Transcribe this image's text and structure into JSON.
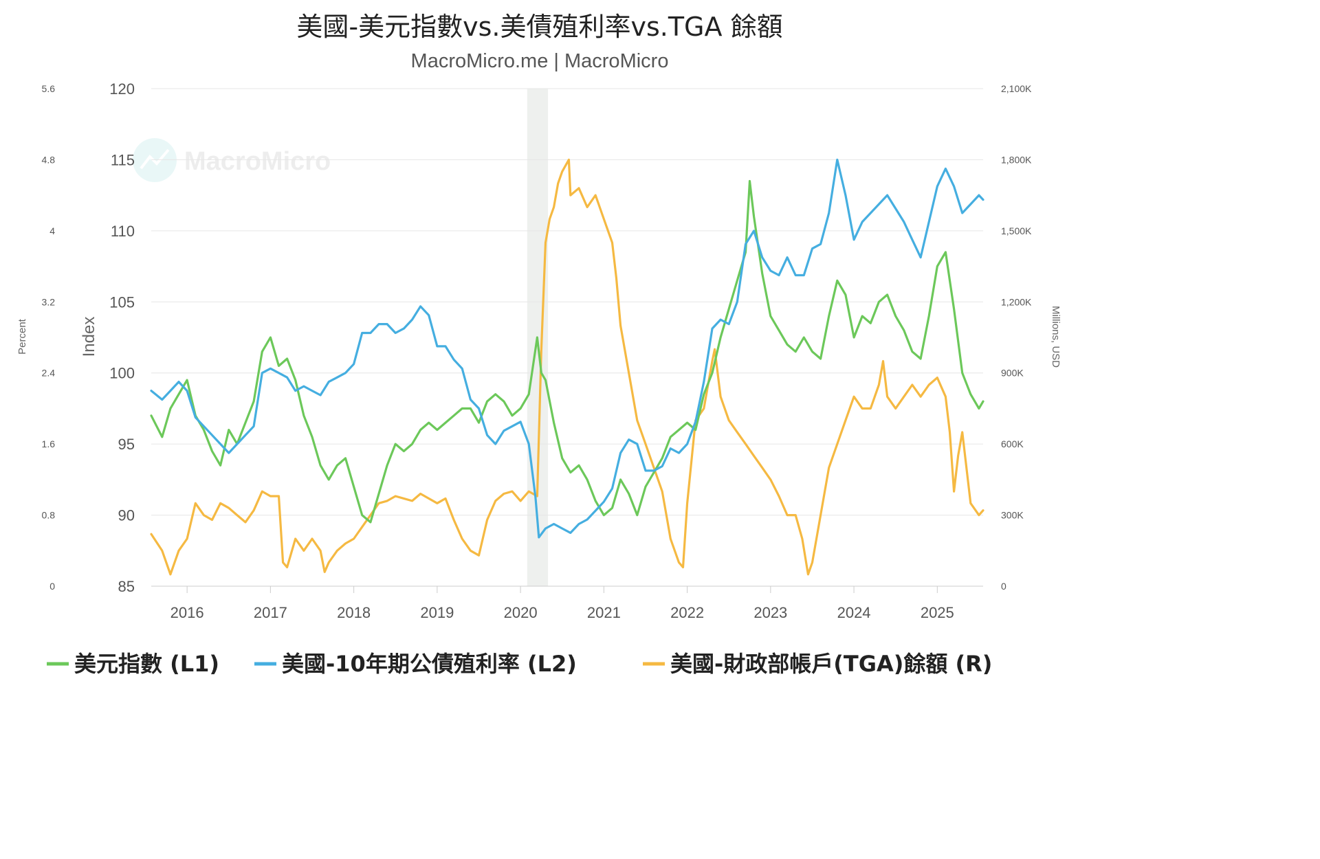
{
  "chart_data": {
    "type": "line",
    "title": "美國-美元指數vs.美債殖利率vs.TGA 餘額",
    "subtitle": "MacroMicro.me | MacroMicro",
    "watermark": "MacroMicro",
    "x_ticks": [
      "2016",
      "2017",
      "2018",
      "2019",
      "2020",
      "2021",
      "2022",
      "2023",
      "2024",
      "2025"
    ],
    "xlim": [
      2015.57,
      2025.55
    ],
    "recession_band": [
      2020.08,
      2020.33
    ],
    "axes": {
      "left1": {
        "label": "Index",
        "ylim": [
          85,
          120
        ],
        "ticks": [
          "85",
          "90",
          "95",
          "100",
          "105",
          "110",
          "115",
          "120"
        ]
      },
      "left2": {
        "label": "Percent",
        "ylim": [
          0,
          5.6
        ],
        "ticks": [
          "0",
          "0.8",
          "1.6",
          "2.4",
          "3.2",
          "4",
          "4.8",
          "5.6"
        ]
      },
      "right": {
        "label": "Millions, USD",
        "ylim": [
          0,
          2100000
        ],
        "ticks": [
          "0",
          "300K",
          "600K",
          "900K",
          "1,200K",
          "1,500K",
          "1,800K",
          "2,100K"
        ]
      }
    },
    "grid": true,
    "series": [
      {
        "name": "美元指數 (L1)",
        "axis": "left1",
        "color": "#6cc85a",
        "x": [
          2015.57,
          2015.7,
          2015.8,
          2015.9,
          2016.0,
          2016.1,
          2016.2,
          2016.3,
          2016.4,
          2016.5,
          2016.6,
          2016.7,
          2016.8,
          2016.9,
          2017.0,
          2017.1,
          2017.2,
          2017.3,
          2017.4,
          2017.5,
          2017.6,
          2017.7,
          2017.8,
          2017.9,
          2018.0,
          2018.1,
          2018.2,
          2018.3,
          2018.4,
          2018.5,
          2018.6,
          2018.7,
          2018.8,
          2018.9,
          2019.0,
          2019.1,
          2019.2,
          2019.3,
          2019.4,
          2019.5,
          2019.6,
          2019.7,
          2019.8,
          2019.9,
          2020.0,
          2020.1,
          2020.2,
          2020.25,
          2020.3,
          2020.4,
          2020.5,
          2020.6,
          2020.7,
          2020.8,
          2020.9,
          2021.0,
          2021.1,
          2021.2,
          2021.3,
          2021.4,
          2021.5,
          2021.6,
          2021.7,
          2021.8,
          2021.9,
          2022.0,
          2022.1,
          2022.2,
          2022.3,
          2022.4,
          2022.5,
          2022.6,
          2022.7,
          2022.75,
          2022.8,
          2022.9,
          2023.0,
          2023.1,
          2023.2,
          2023.3,
          2023.4,
          2023.5,
          2023.6,
          2023.7,
          2023.8,
          2023.9,
          2024.0,
          2024.1,
          2024.2,
          2024.3,
          2024.4,
          2024.5,
          2024.6,
          2024.7,
          2024.8,
          2024.9,
          2025.0,
          2025.1,
          2025.2,
          2025.3,
          2025.4,
          2025.5,
          2025.55
        ],
        "values": [
          97.0,
          95.5,
          97.5,
          98.5,
          99.5,
          97.0,
          96.0,
          94.5,
          93.5,
          96.0,
          95.0,
          96.5,
          98.0,
          101.5,
          102.5,
          100.5,
          101.0,
          99.5,
          97.0,
          95.5,
          93.5,
          92.5,
          93.5,
          94.0,
          92.0,
          90.0,
          89.5,
          91.5,
          93.5,
          95.0,
          94.5,
          95.0,
          96.0,
          96.5,
          96.0,
          96.5,
          97.0,
          97.5,
          97.5,
          96.5,
          98.0,
          98.5,
          98.0,
          97.0,
          97.5,
          98.5,
          102.5,
          100.0,
          99.5,
          96.5,
          94.0,
          93.0,
          93.5,
          92.5,
          91.0,
          90.0,
          90.5,
          92.5,
          91.5,
          90.0,
          92.0,
          93.0,
          94.0,
          95.5,
          96.0,
          96.5,
          96.0,
          98.5,
          100.0,
          102.5,
          104.5,
          106.5,
          108.5,
          113.5,
          111.0,
          107.0,
          104.0,
          103.0,
          102.0,
          101.5,
          102.5,
          101.5,
          101.0,
          104.0,
          106.5,
          105.5,
          102.5,
          104.0,
          103.5,
          105.0,
          105.5,
          104.0,
          103.0,
          101.5,
          101.0,
          104.0,
          107.5,
          108.5,
          104.5,
          100.0,
          98.5,
          97.5,
          98.0
        ]
      },
      {
        "name": "美國-10年期公債殖利率 (L2)",
        "axis": "left2",
        "color": "#45aee0",
        "x": [
          2015.57,
          2015.7,
          2015.8,
          2015.9,
          2016.0,
          2016.1,
          2016.2,
          2016.3,
          2016.4,
          2016.5,
          2016.6,
          2016.7,
          2016.8,
          2016.9,
          2017.0,
          2017.1,
          2017.2,
          2017.3,
          2017.4,
          2017.5,
          2017.6,
          2017.7,
          2017.8,
          2017.9,
          2018.0,
          2018.1,
          2018.2,
          2018.3,
          2018.4,
          2018.5,
          2018.6,
          2018.7,
          2018.8,
          2018.9,
          2019.0,
          2019.1,
          2019.2,
          2019.3,
          2019.4,
          2019.5,
          2019.6,
          2019.7,
          2019.8,
          2019.9,
          2020.0,
          2020.1,
          2020.18,
          2020.22,
          2020.3,
          2020.4,
          2020.5,
          2020.6,
          2020.7,
          2020.8,
          2020.9,
          2021.0,
          2021.1,
          2021.2,
          2021.3,
          2021.4,
          2021.5,
          2021.6,
          2021.7,
          2021.8,
          2021.9,
          2022.0,
          2022.1,
          2022.2,
          2022.3,
          2022.4,
          2022.5,
          2022.6,
          2022.7,
          2022.8,
          2022.9,
          2023.0,
          2023.1,
          2023.2,
          2023.3,
          2023.4,
          2023.5,
          2023.6,
          2023.7,
          2023.8,
          2023.9,
          2024.0,
          2024.1,
          2024.2,
          2024.3,
          2024.4,
          2024.5,
          2024.6,
          2024.7,
          2024.8,
          2024.9,
          2025.0,
          2025.1,
          2025.2,
          2025.3,
          2025.4,
          2025.5,
          2025.55
        ],
        "values": [
          2.2,
          2.1,
          2.2,
          2.3,
          2.2,
          1.9,
          1.8,
          1.7,
          1.6,
          1.5,
          1.6,
          1.7,
          1.8,
          2.4,
          2.45,
          2.4,
          2.35,
          2.2,
          2.25,
          2.2,
          2.15,
          2.3,
          2.35,
          2.4,
          2.5,
          2.85,
          2.85,
          2.95,
          2.95,
          2.85,
          2.9,
          3.0,
          3.15,
          3.05,
          2.7,
          2.7,
          2.55,
          2.45,
          2.1,
          2.0,
          1.7,
          1.6,
          1.75,
          1.8,
          1.85,
          1.6,
          1.0,
          0.55,
          0.65,
          0.7,
          0.65,
          0.6,
          0.7,
          0.75,
          0.85,
          0.95,
          1.1,
          1.5,
          1.65,
          1.6,
          1.3,
          1.3,
          1.35,
          1.55,
          1.5,
          1.6,
          1.85,
          2.3,
          2.9,
          3.0,
          2.95,
          3.2,
          3.85,
          4.0,
          3.7,
          3.55,
          3.5,
          3.7,
          3.5,
          3.5,
          3.8,
          3.85,
          4.2,
          4.8,
          4.4,
          3.9,
          4.1,
          4.2,
          4.3,
          4.4,
          4.25,
          4.1,
          3.9,
          3.7,
          4.1,
          4.5,
          4.7,
          4.5,
          4.2,
          4.3,
          4.4,
          4.35
        ]
      },
      {
        "name": "美國-財政部帳戶(TGA)餘額 (R)",
        "axis": "right",
        "color": "#f5b942",
        "x": [
          2015.57,
          2015.7,
          2015.8,
          2015.9,
          2016.0,
          2016.1,
          2016.2,
          2016.3,
          2016.4,
          2016.5,
          2016.6,
          2016.7,
          2016.8,
          2016.9,
          2017.0,
          2017.1,
          2017.15,
          2017.2,
          2017.3,
          2017.4,
          2017.5,
          2017.6,
          2017.65,
          2017.7,
          2017.8,
          2017.9,
          2018.0,
          2018.1,
          2018.2,
          2018.3,
          2018.4,
          2018.5,
          2018.6,
          2018.7,
          2018.8,
          2018.9,
          2019.0,
          2019.1,
          2019.2,
          2019.3,
          2019.4,
          2019.5,
          2019.6,
          2019.7,
          2019.8,
          2019.9,
          2020.0,
          2020.1,
          2020.2,
          2020.25,
          2020.3,
          2020.35,
          2020.4,
          2020.45,
          2020.5,
          2020.58,
          2020.6,
          2020.7,
          2020.8,
          2020.9,
          2021.0,
          2021.1,
          2021.15,
          2021.2,
          2021.3,
          2021.4,
          2021.5,
          2021.6,
          2021.7,
          2021.75,
          2021.8,
          2021.9,
          2021.95,
          2022.0,
          2022.1,
          2022.2,
          2022.3,
          2022.33,
          2022.4,
          2022.5,
          2022.6,
          2022.7,
          2022.8,
          2022.9,
          2023.0,
          2023.1,
          2023.2,
          2023.3,
          2023.38,
          2023.45,
          2023.5,
          2023.6,
          2023.7,
          2023.8,
          2023.9,
          2024.0,
          2024.1,
          2024.2,
          2024.3,
          2024.35,
          2024.4,
          2024.5,
          2024.6,
          2024.7,
          2024.8,
          2024.9,
          2025.0,
          2025.1,
          2025.15,
          2025.2,
          2025.25,
          2025.3,
          2025.4,
          2025.5,
          2025.55
        ],
        "values": [
          220000,
          150000,
          50000,
          150000,
          200000,
          350000,
          300000,
          280000,
          350000,
          330000,
          300000,
          270000,
          320000,
          400000,
          380000,
          380000,
          100000,
          80000,
          200000,
          150000,
          200000,
          150000,
          60000,
          100000,
          150000,
          180000,
          200000,
          250000,
          300000,
          350000,
          360000,
          380000,
          370000,
          360000,
          390000,
          370000,
          350000,
          370000,
          280000,
          200000,
          150000,
          130000,
          280000,
          360000,
          390000,
          400000,
          360000,
          400000,
          380000,
          1000000,
          1450000,
          1550000,
          1600000,
          1700000,
          1750000,
          1800000,
          1650000,
          1680000,
          1600000,
          1650000,
          1550000,
          1450000,
          1300000,
          1100000,
          900000,
          700000,
          600000,
          500000,
          400000,
          300000,
          200000,
          100000,
          80000,
          350000,
          700000,
          750000,
          950000,
          1000000,
          800000,
          700000,
          650000,
          600000,
          550000,
          500000,
          450000,
          380000,
          300000,
          300000,
          200000,
          50000,
          100000,
          300000,
          500000,
          600000,
          700000,
          800000,
          750000,
          750000,
          850000,
          950000,
          800000,
          750000,
          800000,
          850000,
          800000,
          850000,
          880000,
          800000,
          650000,
          400000,
          550000,
          650000,
          350000,
          300000,
          320000
        ]
      }
    ]
  }
}
